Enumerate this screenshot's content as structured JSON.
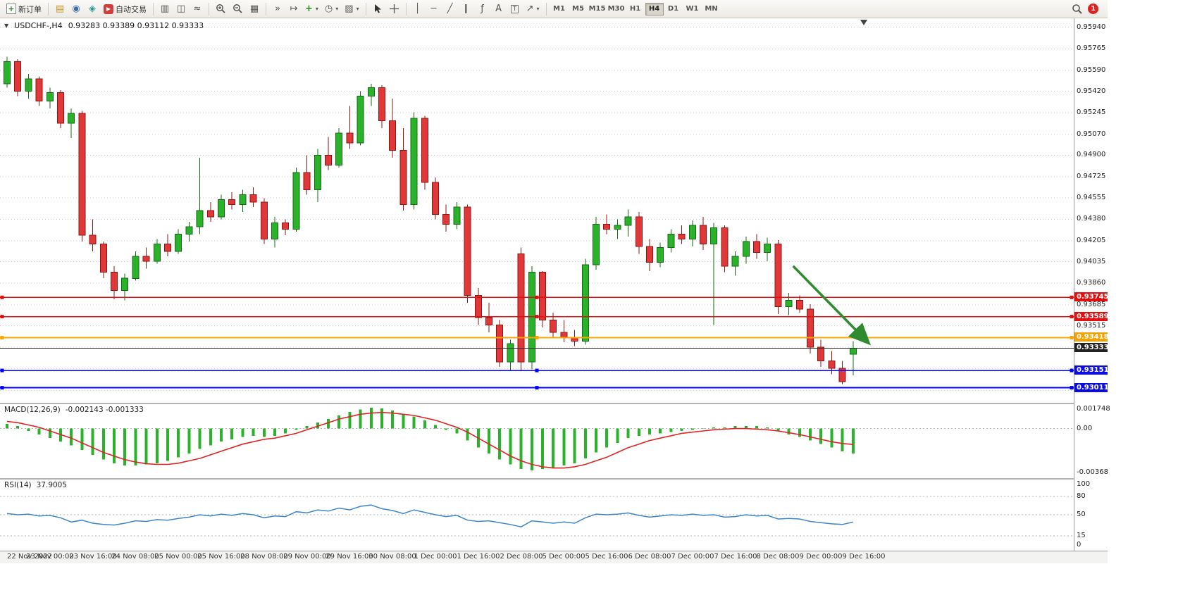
{
  "toolbar": {
    "new_order_label": "新订单",
    "autotrading_label": "自动交易",
    "timeframes": [
      "M1",
      "M5",
      "M15",
      "M30",
      "H1",
      "H4",
      "D1",
      "W1",
      "MN"
    ],
    "active_timeframe": "H4",
    "notification_count": "1",
    "icon_glyphs": {
      "new_order": "+",
      "new_chart": "▤",
      "market_watch": "◉",
      "metaeditor": "◈",
      "autotrading": "▶",
      "bar_chart": "▥",
      "candle_chart": "◫",
      "line_chart": "≈",
      "tile_windows": "▦",
      "autoscroll": "»",
      "chart_shift": "↦",
      "indicators": "+",
      "periods": "◷",
      "templates": "▨",
      "crosshair": "+",
      "vline": "│",
      "hline": "─",
      "trendline": "╱",
      "channel": "∥",
      "fibo": "ƒ",
      "text": "A",
      "label": "T",
      "arrows": "↗",
      "dropdown": "▾"
    }
  },
  "chart": {
    "title": "USDCHF-,H4",
    "menu_marker": "▼",
    "ohlc_text": "0.93283 0.93389 0.93112 0.93333",
    "open": "0.93283",
    "high": "0.93389",
    "low": "0.93112",
    "close": "0.93333"
  },
  "chart_data": {
    "type": "candlestick",
    "symbol": "USDCHF",
    "timeframe": "H4",
    "price_top": 0.9599,
    "price_bottom": 0.929,
    "colors": {
      "bull": "#2ab32a",
      "bull_edge": "#156b15",
      "bear": "#e03838",
      "bear_edge": "#8f1414",
      "macd_hist": "#2ab32a",
      "macd_signal": "#e02424",
      "rsi_line": "#3d85c8",
      "grid": "#cccccc",
      "arrow": "#2e8b2e"
    },
    "price_axis": {
      "labels": [
        "0.95940",
        "0.95765",
        "0.95590",
        "0.95420",
        "0.95245",
        "0.95070",
        "0.94900",
        "0.94725",
        "0.94555",
        "0.94380",
        "0.94205",
        "0.94035",
        "0.93860",
        "0.93685",
        "0.93515"
      ],
      "extra_gridlines": [
        0.9334,
        0.93165,
        0.9299
      ]
    },
    "hlines": [
      {
        "price": 0.93745,
        "label": "0.93745",
        "color": "#e01010",
        "badge": "#e01010",
        "width": 1.3,
        "handles": true
      },
      {
        "price": 0.93589,
        "label": "0.93589",
        "color": "#e01010",
        "badge": "#e01010",
        "width": 1.3,
        "handles": true
      },
      {
        "price": 0.93418,
        "label": "0.93418",
        "color": "#ffa500",
        "badge": "#f5a000",
        "width": 1.6,
        "handles": true
      },
      {
        "price": 0.93333,
        "label": "0.93333",
        "color": "#2b2b2b",
        "badge": "#222222",
        "width": 1.1,
        "handles": false
      },
      {
        "price": 0.93151,
        "label": "0.93151",
        "color": "#0000ff",
        "badge": "#0c0cde",
        "width": 1.3,
        "handles": true
      },
      {
        "price": 0.93011,
        "label": "0.93011",
        "color": "#0000ff",
        "badge": "#0c0cde",
        "width": 2.2,
        "handles": true
      }
    ],
    "arrow": {
      "from": {
        "bar": 73.4,
        "price": 0.94
      },
      "to": {
        "bar": 80.5,
        "price": 0.9337
      },
      "color": "#2e8b2e"
    },
    "time_labels": [
      "22 Nov 2022",
      "23 Nov 00:00",
      "23 Nov 16:00",
      "24 Nov 08:00",
      "25 Nov 00:00",
      "25 Nov 16:00",
      "28 Nov 08:00",
      "29 Nov 00:00",
      "29 Nov 16:00",
      "30 Nov 08:00",
      "1 Dec 00:00",
      "1 Dec 16:00",
      "2 Dec 08:00",
      "5 Dec 00:00",
      "5 Dec 16:00",
      "6 Dec 08:00",
      "7 Dec 00:00",
      "7 Dec 16:00",
      "8 Dec 08:00",
      "9 Dec 00:00",
      "9 Dec 16:00"
    ],
    "candles": [
      [
        0.9548,
        0.957,
        0.9545,
        0.9566
      ],
      [
        0.9566,
        0.9568,
        0.9538,
        0.9542
      ],
      [
        0.9542,
        0.9556,
        0.9536,
        0.9552
      ],
      [
        0.9552,
        0.9554,
        0.953,
        0.9534
      ],
      [
        0.9534,
        0.9545,
        0.9528,
        0.9541
      ],
      [
        0.9541,
        0.9543,
        0.9512,
        0.9516
      ],
      [
        0.9516,
        0.9528,
        0.9504,
        0.9524
      ],
      [
        0.9524,
        0.9526,
        0.942,
        0.9425
      ],
      [
        0.9425,
        0.9438,
        0.9412,
        0.9418
      ],
      [
        0.9418,
        0.942,
        0.939,
        0.9395
      ],
      [
        0.9395,
        0.94,
        0.9373,
        0.938
      ],
      [
        0.938,
        0.9394,
        0.9372,
        0.939
      ],
      [
        0.939,
        0.9412,
        0.9388,
        0.9408
      ],
      [
        0.9408,
        0.9415,
        0.9398,
        0.9404
      ],
      [
        0.9404,
        0.9422,
        0.9402,
        0.9418
      ],
      [
        0.9418,
        0.9426,
        0.9408,
        0.9412
      ],
      [
        0.9412,
        0.943,
        0.941,
        0.9426
      ],
      [
        0.9426,
        0.9436,
        0.942,
        0.9432
      ],
      [
        0.9432,
        0.9488,
        0.9426,
        0.9445
      ],
      [
        0.9445,
        0.9452,
        0.9436,
        0.944
      ],
      [
        0.944,
        0.9458,
        0.9438,
        0.9454
      ],
      [
        0.9454,
        0.946,
        0.9446,
        0.945
      ],
      [
        0.945,
        0.9462,
        0.9444,
        0.9458
      ],
      [
        0.9458,
        0.9464,
        0.9448,
        0.9452
      ],
      [
        0.9452,
        0.9455,
        0.9418,
        0.9422
      ],
      [
        0.9422,
        0.944,
        0.9415,
        0.9435
      ],
      [
        0.9435,
        0.9438,
        0.9425,
        0.943
      ],
      [
        0.943,
        0.948,
        0.9428,
        0.9476
      ],
      [
        0.9476,
        0.949,
        0.9458,
        0.9462
      ],
      [
        0.9462,
        0.9495,
        0.9452,
        0.949
      ],
      [
        0.949,
        0.9505,
        0.9478,
        0.9482
      ],
      [
        0.9482,
        0.9512,
        0.948,
        0.9508
      ],
      [
        0.9508,
        0.953,
        0.9495,
        0.95
      ],
      [
        0.95,
        0.9542,
        0.9498,
        0.9538
      ],
      [
        0.9538,
        0.9548,
        0.953,
        0.9545
      ],
      [
        0.9545,
        0.9547,
        0.9512,
        0.9518
      ],
      [
        0.9518,
        0.9536,
        0.9488,
        0.9494
      ],
      [
        0.9494,
        0.9512,
        0.9445,
        0.945
      ],
      [
        0.945,
        0.9525,
        0.9446,
        0.952
      ],
      [
        0.952,
        0.9522,
        0.9462,
        0.9468
      ],
      [
        0.9468,
        0.9472,
        0.9438,
        0.9442
      ],
      [
        0.9442,
        0.945,
        0.9428,
        0.9434
      ],
      [
        0.9434,
        0.9452,
        0.943,
        0.9448
      ],
      [
        0.9448,
        0.945,
        0.937,
        0.9376
      ],
      [
        0.9376,
        0.9382,
        0.9352,
        0.9358
      ],
      [
        0.9358,
        0.937,
        0.9346,
        0.9352
      ],
      [
        0.9352,
        0.9356,
        0.9318,
        0.9322
      ],
      [
        0.9322,
        0.934,
        0.9315,
        0.9337
      ],
      [
        0.941,
        0.9415,
        0.9315,
        0.9322
      ],
      [
        0.9322,
        0.94,
        0.9316,
        0.9395
      ],
      [
        0.9395,
        0.9396,
        0.935,
        0.9356
      ],
      [
        0.9356,
        0.9362,
        0.9342,
        0.9346
      ],
      [
        0.9346,
        0.9356,
        0.9338,
        0.9342
      ],
      [
        0.9342,
        0.9348,
        0.9335,
        0.9339
      ],
      [
        0.9339,
        0.9406,
        0.9336,
        0.9401
      ],
      [
        0.9401,
        0.944,
        0.9397,
        0.9434
      ],
      [
        0.9434,
        0.9442,
        0.9426,
        0.943
      ],
      [
        0.943,
        0.9438,
        0.9422,
        0.9433
      ],
      [
        0.9433,
        0.9446,
        0.9424,
        0.944
      ],
      [
        0.944,
        0.9444,
        0.941,
        0.9416
      ],
      [
        0.9416,
        0.9422,
        0.9396,
        0.9403
      ],
      [
        0.9403,
        0.9419,
        0.9399,
        0.9415
      ],
      [
        0.9415,
        0.943,
        0.9411,
        0.9426
      ],
      [
        0.9426,
        0.9433,
        0.9418,
        0.9422
      ],
      [
        0.9422,
        0.9437,
        0.9416,
        0.9433
      ],
      [
        0.9433,
        0.944,
        0.9413,
        0.9418
      ],
      [
        0.9418,
        0.9435,
        0.9352,
        0.9431
      ],
      [
        0.9431,
        0.9433,
        0.9395,
        0.94
      ],
      [
        0.94,
        0.9412,
        0.9392,
        0.9408
      ],
      [
        0.9408,
        0.9424,
        0.9402,
        0.942
      ],
      [
        0.942,
        0.9426,
        0.9406,
        0.9411
      ],
      [
        0.9411,
        0.9423,
        0.9404,
        0.9418
      ],
      [
        0.9418,
        0.9421,
        0.9361,
        0.9367
      ],
      [
        0.9367,
        0.9378,
        0.936,
        0.9372
      ],
      [
        0.9372,
        0.9376,
        0.9362,
        0.9365
      ],
      [
        0.9365,
        0.9369,
        0.9329,
        0.9334
      ],
      [
        0.9334,
        0.934,
        0.9318,
        0.9323
      ],
      [
        0.9323,
        0.9331,
        0.9312,
        0.9317
      ],
      [
        0.9317,
        0.9323,
        0.9304,
        0.9306
      ],
      [
        0.93283,
        0.93389,
        0.93112,
        0.93333
      ]
    ],
    "macd": {
      "label": "MACD(12,26,9)",
      "values_text": "-0.002143 -0.001333",
      "max": 0.001748,
      "min": -0.00368,
      "axis": [
        "0.001748",
        "0.00",
        "-0.00368"
      ],
      "hist": [
        0.0004,
        0.0002,
        -0.0002,
        -0.0005,
        -0.0008,
        -0.0011,
        -0.0014,
        -0.0018,
        -0.0022,
        -0.0026,
        -0.0029,
        -0.0031,
        -0.0031,
        -0.003,
        -0.0029,
        -0.0027,
        -0.0024,
        -0.0021,
        -0.0017,
        -0.0014,
        -0.0011,
        -0.0009,
        -0.0007,
        -0.0006,
        -0.0007,
        -0.0006,
        -0.0004,
        -0.0001,
        0.0002,
        0.0005,
        0.0008,
        0.0011,
        0.0014,
        0.0016,
        0.00175,
        0.0017,
        0.0015,
        0.0012,
        0.001,
        0.0007,
        0.0003,
        -0.0001,
        -0.0004,
        -0.001,
        -0.0016,
        -0.0021,
        -0.0026,
        -0.003,
        -0.0034,
        -0.0035,
        -0.0034,
        -0.0033,
        -0.0031,
        -0.0029,
        -0.0025,
        -0.002,
        -0.0016,
        -0.0012,
        -0.0008,
        -0.0006,
        -0.0005,
        -0.0004,
        -0.0003,
        -0.0002,
        -0.0001,
        0,
        0.0001,
        0.0001,
        0.0002,
        0.0002,
        0.0002,
        0.0001,
        -0.0002,
        -0.0005,
        -0.0007,
        -0.001,
        -0.0013,
        -0.0016,
        -0.0019,
        -0.0021
      ],
      "signal": [
        0.0006,
        0.0005,
        0.0003,
        0.0001,
        -0.0002,
        -0.0005,
        -0.0008,
        -0.0012,
        -0.0016,
        -0.002,
        -0.0023,
        -0.0026,
        -0.0028,
        -0.00295,
        -0.003,
        -0.003,
        -0.0029,
        -0.0027,
        -0.0025,
        -0.0022,
        -0.0019,
        -0.0016,
        -0.0013,
        -0.0011,
        -0.0009,
        -0.0008,
        -0.0006,
        -0.0004,
        -0.0001,
        0.0002,
        0.0005,
        0.0008,
        0.001,
        0.0012,
        0.0013,
        0.00135,
        0.0013,
        0.0012,
        0.0011,
        0.0009,
        0.0007,
        0.0004,
        0.0001,
        -0.0003,
        -0.0008,
        -0.0013,
        -0.0018,
        -0.0023,
        -0.0027,
        -0.003,
        -0.0032,
        -0.0033,
        -0.0033,
        -0.0032,
        -0.003,
        -0.0027,
        -0.0024,
        -0.002,
        -0.0016,
        -0.0013,
        -0.001,
        -0.0008,
        -0.0006,
        -0.0004,
        -0.0003,
        -0.0002,
        -0.0001,
        -5e-05,
        0,
        0,
        -5e-05,
        -0.0001,
        -0.0002,
        -0.00035,
        -0.0005,
        -0.0007,
        -0.0009,
        -0.0011,
        -0.00125,
        -0.001333
      ]
    },
    "rsi": {
      "label": "RSI(14)",
      "value_text": "37.9005",
      "axis_labels": [
        "100",
        "80",
        "50",
        "15",
        "0"
      ],
      "levels": [
        80,
        50,
        15
      ],
      "series": [
        52,
        50,
        51,
        48,
        49,
        45,
        38,
        41,
        36,
        34,
        33,
        36,
        40,
        39,
        42,
        41,
        44,
        46,
        50,
        48,
        51,
        49,
        52,
        50,
        45,
        48,
        47,
        55,
        53,
        58,
        56,
        61,
        58,
        64,
        66,
        60,
        57,
        52,
        58,
        54,
        50,
        47,
        49,
        41,
        39,
        40,
        37,
        34,
        30,
        40,
        38,
        36,
        38,
        36,
        45,
        51,
        50,
        51,
        53,
        49,
        46,
        48,
        50,
        49,
        51,
        49,
        50,
        46,
        47,
        50,
        48,
        49,
        43,
        44,
        43,
        39,
        37,
        35,
        34,
        37.9
      ]
    }
  }
}
